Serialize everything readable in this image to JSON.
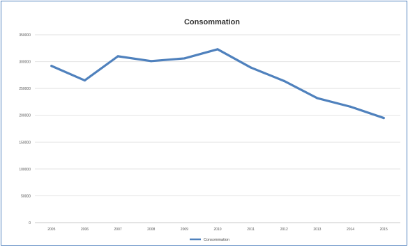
{
  "chart_data": {
    "type": "line",
    "title": "Consommation",
    "xlabel": "",
    "ylabel": "",
    "categories": [
      "2005",
      "2006",
      "2007",
      "2008",
      "2009",
      "2010",
      "2011",
      "2012",
      "2013",
      "2014",
      "2015"
    ],
    "yticks": [
      "0",
      "50000",
      "100000",
      "150000",
      "200000",
      "250000",
      "300000",
      "350000"
    ],
    "ylim": [
      0,
      350000
    ],
    "series": [
      {
        "name": "Consommation",
        "color": "#4f81bd",
        "values": [
          292000,
          265000,
          310000,
          301000,
          306000,
          323000,
          289000,
          264000,
          232000,
          216000,
          195000
        ]
      }
    ],
    "grid": true,
    "legend": "bottom"
  }
}
